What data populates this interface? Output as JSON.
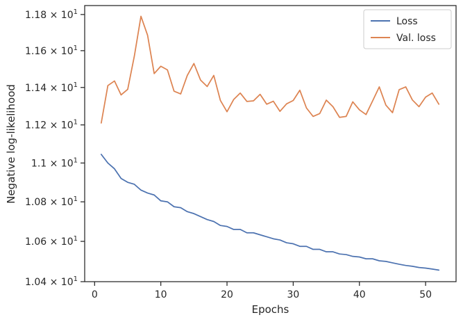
{
  "chart_data": {
    "type": "line",
    "xlabel": "Epochs",
    "ylabel": "Negative log-likelihood",
    "xlim": [
      -1.5,
      54.6
    ],
    "ylim": [
      10.4,
      11.85
    ],
    "yscale": "log",
    "grid": false,
    "legend_position": "top-right",
    "x_ticks": [
      0,
      10,
      20,
      30,
      40,
      50
    ],
    "x_tick_labels": [
      "0",
      "10",
      "20",
      "30",
      "40",
      "50"
    ],
    "y_ticks": [
      10.4,
      10.6,
      10.8,
      11.0,
      11.2,
      11.4,
      11.6,
      11.8
    ],
    "y_tick_labels": [
      {
        "mantissa": "1.04",
        "times": "×",
        "base": "10",
        "exp": "1"
      },
      {
        "mantissa": "1.06",
        "times": "×",
        "base": "10",
        "exp": "1"
      },
      {
        "mantissa": "1.08",
        "times": "×",
        "base": "10",
        "exp": "1"
      },
      {
        "mantissa": "1.1",
        "times": "×",
        "base": "10",
        "exp": "1"
      },
      {
        "mantissa": "1.12",
        "times": "×",
        "base": "10",
        "exp": "1"
      },
      {
        "mantissa": "1.14",
        "times": "×",
        "base": "10",
        "exp": "1"
      },
      {
        "mantissa": "1.16",
        "times": "×",
        "base": "10",
        "exp": "1"
      },
      {
        "mantissa": "1.18",
        "times": "×",
        "base": "10",
        "exp": "1"
      }
    ],
    "x": [
      1,
      2,
      3,
      4,
      5,
      6,
      7,
      8,
      9,
      10,
      11,
      12,
      13,
      14,
      15,
      16,
      17,
      18,
      19,
      20,
      21,
      22,
      23,
      24,
      25,
      26,
      27,
      28,
      29,
      30,
      31,
      32,
      33,
      34,
      35,
      36,
      37,
      38,
      39,
      40,
      41,
      42,
      43,
      44,
      45,
      46,
      47,
      48,
      49,
      50,
      51,
      52
    ],
    "series": [
      {
        "name": "Loss",
        "color": "#4c72b0",
        "values": [
          11.045,
          11.0,
          10.97,
          10.92,
          10.9,
          10.89,
          10.86,
          10.845,
          10.835,
          10.805,
          10.8,
          10.775,
          10.77,
          10.75,
          10.74,
          10.725,
          10.71,
          10.7,
          10.68,
          10.675,
          10.66,
          10.66,
          10.643,
          10.643,
          10.633,
          10.623,
          10.613,
          10.607,
          10.593,
          10.588,
          10.575,
          10.575,
          10.56,
          10.56,
          10.548,
          10.548,
          10.537,
          10.534,
          10.525,
          10.522,
          10.513,
          10.513,
          10.503,
          10.5,
          10.493,
          10.486,
          10.48,
          10.476,
          10.47,
          10.467,
          10.462,
          10.457
        ]
      },
      {
        "name": "Val. loss",
        "color": "#dd8452",
        "values": [
          11.21,
          11.41,
          11.435,
          11.36,
          11.39,
          11.57,
          11.79,
          11.685,
          11.475,
          11.515,
          11.495,
          11.38,
          11.365,
          11.465,
          11.53,
          11.44,
          11.405,
          11.465,
          11.33,
          11.27,
          11.335,
          11.37,
          11.325,
          11.328,
          11.363,
          11.31,
          11.326,
          11.272,
          11.312,
          11.33,
          11.385,
          11.29,
          11.245,
          11.26,
          11.332,
          11.297,
          11.24,
          11.245,
          11.323,
          11.28,
          11.255,
          11.328,
          11.403,
          11.305,
          11.265,
          11.388,
          11.403,
          11.333,
          11.297,
          11.348,
          11.37,
          11.31
        ]
      }
    ]
  }
}
